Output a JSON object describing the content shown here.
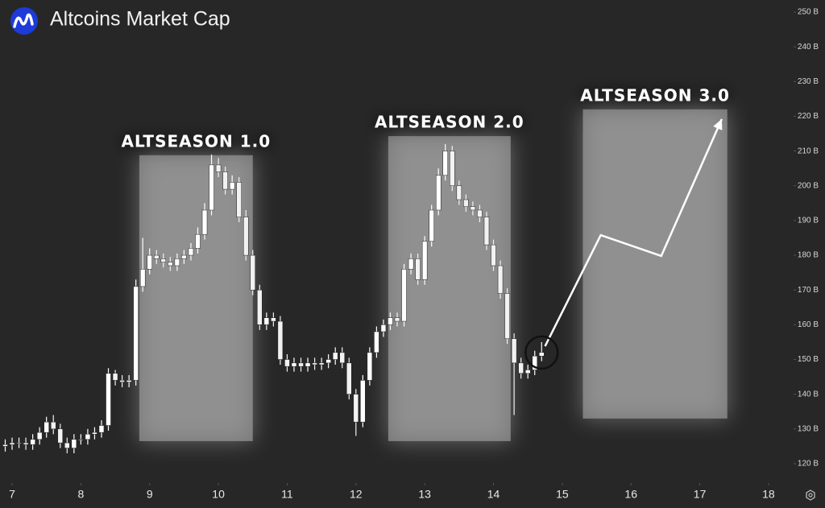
{
  "chart_data": {
    "type": "candlestick",
    "title": "Altcoins Market Cap",
    "up_color": "#ffffff",
    "down_color": "#f2f2f2",
    "region_color": "#a6a6a6",
    "arrow_color": "#ffffff",
    "xlim": [
      6.824,
      18.364
    ],
    "ylim": [
      114.43,
      253.48
    ],
    "xticks": [
      7,
      8,
      9,
      10,
      11,
      12,
      13,
      14,
      15,
      16,
      17,
      18
    ],
    "yticks": [
      {
        "value": 120,
        "label": "120 B"
      },
      {
        "value": 130,
        "label": "130 B"
      },
      {
        "value": 140,
        "label": "140 B"
      },
      {
        "value": 150,
        "label": "150 B"
      },
      {
        "value": 160,
        "label": "160 B"
      },
      {
        "value": 170,
        "label": "170 B"
      },
      {
        "value": 180,
        "label": "180 B"
      },
      {
        "value": 190,
        "label": "190 B"
      },
      {
        "value": 200,
        "label": "200 B"
      },
      {
        "value": 210,
        "label": "210 B"
      },
      {
        "value": 220,
        "label": "220 B"
      },
      {
        "value": 230,
        "label": "230 B"
      },
      {
        "value": 240,
        "label": "240 B"
      },
      {
        "value": 250,
        "label": "250 B"
      }
    ],
    "x": [
      6.9,
      7.0,
      7.1,
      7.2,
      7.3,
      7.4,
      7.5,
      7.6,
      7.7,
      7.8,
      7.9,
      8.0,
      8.1,
      8.2,
      8.3,
      8.4,
      8.5,
      8.6,
      8.7,
      8.8,
      8.9,
      9.0,
      9.1,
      9.2,
      9.3,
      9.4,
      9.5,
      9.6,
      9.7,
      9.8,
      9.9,
      10.0,
      10.1,
      10.2,
      10.3,
      10.4,
      10.5,
      10.6,
      10.7,
      10.8,
      10.9,
      11.0,
      11.1,
      11.2,
      11.3,
      11.4,
      11.5,
      11.6,
      11.7,
      11.8,
      11.9,
      12.0,
      12.1,
      12.2,
      12.3,
      12.4,
      12.5,
      12.6,
      12.7,
      12.8,
      12.9,
      13.0,
      13.1,
      13.2,
      13.3,
      13.4,
      13.5,
      13.6,
      13.7,
      13.8,
      13.9,
      14.0,
      14.1,
      14.2,
      14.3,
      14.4,
      14.5,
      14.6,
      14.7
    ],
    "open": [
      125,
      125.5,
      126,
      126,
      125.5,
      127,
      129,
      132,
      130,
      126,
      124.5,
      127,
      127,
      128.5,
      129,
      131,
      146,
      144,
      143.5,
      144,
      171,
      176,
      180,
      179,
      178,
      177,
      179,
      180,
      182,
      186,
      193,
      206,
      204,
      199,
      201,
      191,
      180,
      170,
      160,
      162,
      161,
      150,
      148,
      149,
      148,
      149,
      148.5,
      149,
      150,
      152,
      149,
      140,
      132,
      144,
      152,
      158,
      160,
      162,
      161,
      176,
      179,
      173,
      184,
      193,
      203,
      210,
      200,
      196,
      194,
      193,
      191,
      183,
      177,
      169,
      156,
      149,
      146,
      147,
      151
    ],
    "high": [
      127,
      127.5,
      127.5,
      127.5,
      128.5,
      130.5,
      133.5,
      134,
      131.5,
      127.5,
      128.5,
      128.5,
      130,
      130.5,
      132.5,
      147.5,
      147,
      145.5,
      145.5,
      173,
      185,
      182,
      181.5,
      180.5,
      179.5,
      180.5,
      181.5,
      183.5,
      188,
      195,
      209,
      208,
      205.5,
      203,
      202.5,
      193,
      181.5,
      171.5,
      163.5,
      163.5,
      162.5,
      151.5,
      150.5,
      150.5,
      150.5,
      150.5,
      150.5,
      151.5,
      153.5,
      153.5,
      150.5,
      141.5,
      145.5,
      153.5,
      159.5,
      161.5,
      163.5,
      163.5,
      177.5,
      180.5,
      180.5,
      185.5,
      194.5,
      205,
      212,
      211.5,
      201.5,
      197.5,
      195.5,
      194.5,
      192.5,
      184.5,
      178.5,
      170.5,
      157.5,
      150.5,
      148.5,
      152.5,
      155
    ],
    "low": [
      123.5,
      124,
      124.5,
      124,
      124,
      125.5,
      127.5,
      128.5,
      124.5,
      123,
      123,
      125.5,
      125.5,
      127,
      127.5,
      129.5,
      142.5,
      142,
      142,
      142.5,
      169.5,
      174.5,
      177.5,
      176.5,
      175.5,
      175.5,
      177.5,
      178.5,
      180.5,
      184.5,
      191.5,
      202.5,
      197.5,
      197.5,
      189.5,
      178.5,
      168.5,
      158.5,
      158.5,
      159.5,
      148.5,
      146.5,
      146.5,
      146.5,
      146.5,
      147,
      147,
      147.5,
      148.5,
      147.5,
      138.5,
      128,
      130.5,
      142.5,
      150.5,
      156.5,
      158.5,
      159.5,
      159.5,
      174.5,
      171.5,
      171.5,
      182.5,
      191.5,
      201.5,
      198.5,
      194.5,
      192.5,
      191.5,
      189.5,
      181.5,
      175.5,
      167.5,
      154.5,
      134,
      144.5,
      144.5,
      145.5,
      149.5
    ],
    "close": [
      125.5,
      126,
      126,
      125.5,
      127,
      129,
      132,
      130,
      126,
      124.5,
      127,
      127,
      128.5,
      129,
      131,
      146,
      144,
      143.5,
      144,
      171,
      176,
      180,
      179,
      178,
      177,
      179,
      180,
      182,
      186,
      193,
      206,
      204,
      199,
      201,
      191,
      180,
      170,
      160,
      162,
      161,
      150,
      148,
      149,
      148,
      149,
      148.5,
      149,
      150,
      152,
      149,
      140,
      132,
      144,
      152,
      158,
      160,
      162,
      161,
      176,
      179,
      173,
      184,
      193,
      203,
      210,
      200,
      196,
      194,
      193,
      191,
      183,
      177,
      169,
      156,
      149,
      146,
      147,
      151,
      152
    ],
    "regions": [
      {
        "label": "ALTSEASON 1.0",
        "x0": 8.85,
        "x1": 10.5,
        "y0": 126.5,
        "y1": 208.8
      },
      {
        "label": "ALTSEASON 2.0",
        "x0": 12.47,
        "x1": 14.25,
        "y0": 126.5,
        "y1": 214.3
      },
      {
        "label": "ALTSEASON 3.0",
        "x0": 15.3,
        "x1": 17.4,
        "y0": 133,
        "y1": 222
      }
    ],
    "projection": {
      "x": [
        14.75,
        15.56,
        16.44,
        17.32
      ],
      "values": [
        153.8,
        185.8,
        179.8,
        219.2
      ]
    }
  }
}
